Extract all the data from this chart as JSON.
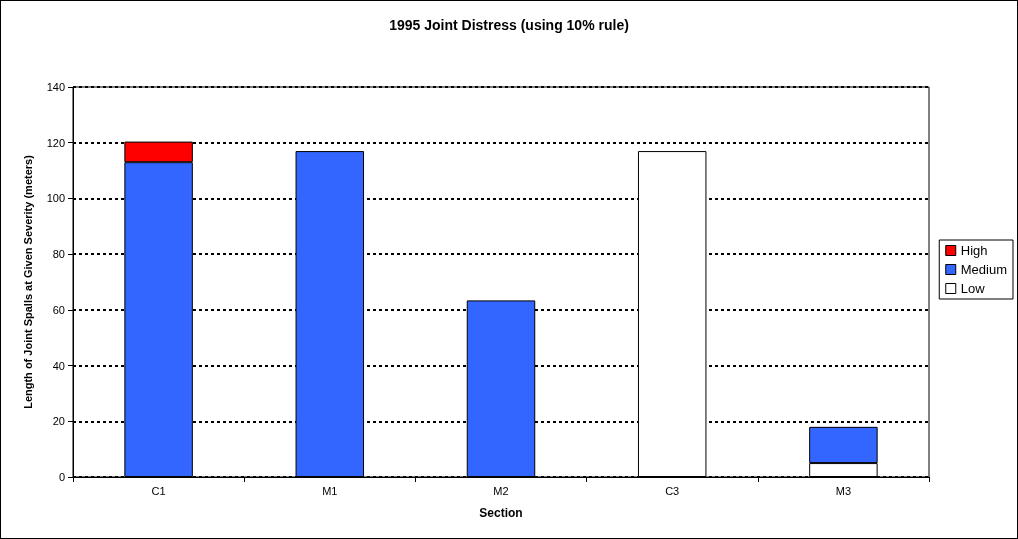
{
  "chart_data": {
    "type": "bar",
    "title": "1995 Joint Distress (using 10% rule)",
    "xlabel": "Section",
    "ylabel": "Length of Joint Spalls at Given Severity (meters)",
    "categories": [
      "C1",
      "M1",
      "M2",
      "C3",
      "M3"
    ],
    "series": [
      {
        "name": "Low",
        "color": "#ffffff",
        "values": [
          null,
          null,
          null,
          117,
          5
        ]
      },
      {
        "name": "Medium",
        "color": "#3366ff",
        "values": [
          113,
          117,
          63.4,
          null,
          13
        ]
      },
      {
        "name": "High",
        "color": "#ff0000",
        "values": [
          7.4,
          null,
          null,
          null,
          null
        ]
      }
    ],
    "stacked": true,
    "ylim": [
      0,
      140
    ],
    "yticks": [
      0,
      20,
      40,
      60,
      80,
      100,
      120,
      140
    ],
    "grid": "y",
    "legend": "right"
  }
}
